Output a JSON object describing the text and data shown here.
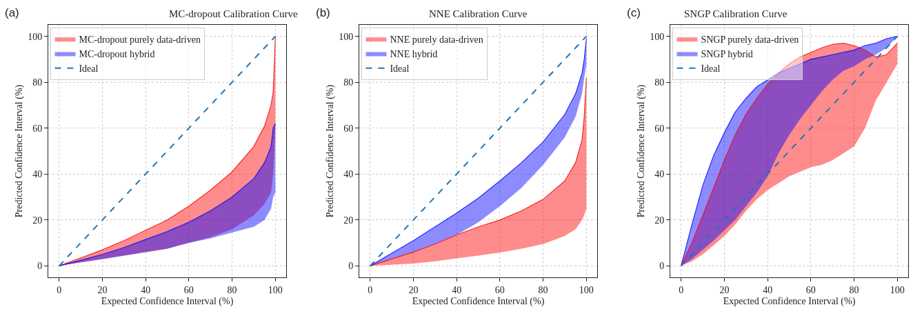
{
  "chart_data": [
    {
      "type": "line",
      "title": "MC-dropout Calibration Curve",
      "xlabel": "Expected Confidence Interval (%)",
      "ylabel": "Predicted Confidence Interval (%)",
      "annotations": [
        "(a)"
      ],
      "xlim": [
        -5,
        105
      ],
      "ylim": [
        -5,
        105
      ],
      "xticks": [
        0,
        20,
        40,
        60,
        80,
        100
      ],
      "yticks": [
        0,
        20,
        40,
        60,
        80,
        100
      ],
      "grid": true,
      "legend": "top left",
      "x": [
        0,
        10,
        20,
        30,
        40,
        50,
        60,
        70,
        80,
        90,
        95,
        98,
        99,
        100
      ],
      "series": [
        {
          "name": "MC-dropout purely data-driven",
          "color": "#ff0000",
          "values": [
            0,
            3.5,
            7,
            11,
            15.5,
            20,
            26,
            33,
            41,
            52,
            61,
            70,
            76,
            100
          ],
          "lower": [
            0,
            1.5,
            3,
            4.5,
            6,
            7.5,
            10,
            12.5,
            16,
            22,
            27,
            32,
            40,
            60
          ],
          "upper": [
            0,
            3.5,
            7,
            11,
            15.5,
            20,
            26,
            33,
            41,
            52,
            61,
            70,
            76,
            100
          ]
        },
        {
          "name": "MC-dropout hybrid",
          "color": "#0000ff",
          "values": [
            0,
            2.5,
            5,
            8,
            11.5,
            15,
            19,
            24,
            30,
            38,
            45,
            52,
            60,
            62
          ],
          "lower": [
            0,
            1.5,
            3,
            4.5,
            6,
            7.5,
            10,
            12,
            14.5,
            17,
            20,
            25,
            30,
            32
          ],
          "upper": [
            0,
            2.5,
            5,
            8,
            11.5,
            15,
            19,
            24,
            30,
            38,
            45,
            52,
            60,
            62
          ]
        },
        {
          "name": "Ideal",
          "color": "#1f77b4",
          "line_style": "dashed",
          "values": [
            0,
            10,
            20,
            30,
            40,
            50,
            60,
            70,
            80,
            90,
            95,
            98,
            99,
            100
          ]
        }
      ]
    },
    {
      "type": "line",
      "title": "NNE Calibration Curve",
      "xlabel": "Expected Confidence Interval (%)",
      "ylabel": "Predicted Confidence Interval (%)",
      "annotations": [
        "(b)"
      ],
      "xlim": [
        -5,
        105
      ],
      "ylim": [
        -5,
        105
      ],
      "xticks": [
        0,
        20,
        40,
        60,
        80,
        100
      ],
      "yticks": [
        0,
        20,
        40,
        60,
        80,
        100
      ],
      "grid": true,
      "legend": "top left",
      "x": [
        0,
        10,
        20,
        30,
        40,
        50,
        60,
        70,
        80,
        90,
        95,
        98,
        99,
        100
      ],
      "series": [
        {
          "name": "NNE purely data-driven",
          "color": "#ff0000",
          "values": [
            0,
            3,
            6,
            9.5,
            13.5,
            17,
            20,
            24,
            29,
            37,
            45,
            55,
            65,
            82
          ],
          "lower": [
            0,
            0.5,
            1,
            2,
            3.3,
            4.5,
            5.8,
            7.5,
            9.5,
            13,
            16,
            20,
            22,
            25
          ],
          "upper": [
            0,
            3,
            6,
            9.5,
            13.5,
            17,
            20,
            24,
            29,
            37,
            45,
            55,
            65,
            82
          ]
        },
        {
          "name": "NNE hybrid",
          "color": "#0000ff",
          "values": [
            0,
            5.5,
            11,
            17,
            23,
            29.5,
            37,
            45,
            54,
            66,
            75,
            84,
            90,
            99
          ],
          "lower": [
            0,
            3,
            6,
            9.5,
            13.5,
            19,
            26,
            34,
            44,
            56,
            65,
            75,
            82,
            88
          ],
          "upper": [
            0,
            5.5,
            11,
            17,
            23,
            29.5,
            37,
            45,
            54,
            66,
            75,
            84,
            90,
            99
          ]
        },
        {
          "name": "Ideal",
          "color": "#1f77b4",
          "line_style": "dashed",
          "values": [
            0,
            10,
            20,
            30,
            40,
            50,
            60,
            70,
            80,
            90,
            95,
            98,
            99,
            100
          ]
        }
      ]
    },
    {
      "type": "line",
      "title": "SNGP Calibration Curve",
      "xlabel": "Expected Confidence Interval (%)",
      "ylabel": "Predicted Confidence Interval (%)",
      "annotations": [
        "(c)"
      ],
      "xlim": [
        -5,
        105
      ],
      "ylim": [
        -5,
        105
      ],
      "xticks": [
        0,
        20,
        40,
        60,
        80,
        100
      ],
      "yticks": [
        0,
        20,
        40,
        60,
        80,
        100
      ],
      "grid": true,
      "legend": "top left",
      "x": [
        0,
        5,
        10,
        15,
        20,
        25,
        30,
        35,
        40,
        45,
        50,
        55,
        60,
        65,
        70,
        75,
        80,
        85,
        90,
        95,
        100
      ],
      "series": [
        {
          "name": "SNGP purely data-driven",
          "color": "#ff0000",
          "values": [
            0,
            10,
            22,
            34,
            46,
            57,
            66,
            73,
            79,
            84,
            88,
            91,
            93,
            95,
            96.5,
            97,
            96,
            94,
            91,
            92,
            97
          ],
          "lower": [
            0,
            2,
            5,
            9,
            13,
            18,
            24,
            29,
            33,
            36,
            39,
            41,
            43,
            44,
            46,
            49,
            52,
            60,
            72,
            80,
            88
          ],
          "upper": [
            0,
            10,
            22,
            34,
            46,
            57,
            66,
            73,
            79,
            84,
            88,
            91,
            93,
            95,
            96.5,
            97,
            96,
            94,
            91,
            92,
            97
          ]
        },
        {
          "name": "SNGP hybrid",
          "color": "#0000ff",
          "values": [
            0,
            18,
            35,
            48,
            58,
            67,
            73,
            78,
            81,
            84,
            86,
            88,
            90,
            91,
            92,
            93,
            94,
            96,
            97,
            99,
            100
          ],
          "lower": [
            0,
            3,
            7,
            11,
            15.5,
            20,
            26,
            32,
            39,
            49,
            57,
            64,
            70,
            76,
            81,
            85,
            87,
            90,
            92,
            95,
            100
          ],
          "upper": [
            0,
            18,
            35,
            48,
            58,
            67,
            73,
            78,
            81,
            84,
            86,
            88,
            90,
            91,
            92,
            93,
            94,
            96,
            97,
            99,
            100
          ]
        },
        {
          "name": "Ideal",
          "color": "#1f77b4",
          "line_style": "dashed",
          "values": [
            0,
            5,
            10,
            15,
            20,
            25,
            30,
            35,
            40,
            45,
            50,
            55,
            60,
            65,
            70,
            75,
            80,
            85,
            90,
            95,
            100
          ]
        }
      ]
    }
  ]
}
